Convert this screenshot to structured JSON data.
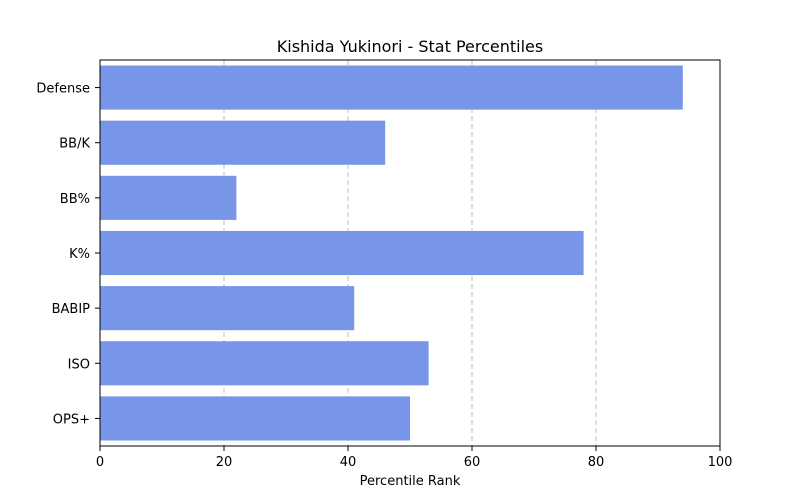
{
  "chart_data": {
    "type": "bar",
    "orientation": "horizontal",
    "title": "Kishida Yukinori - Stat Percentiles",
    "xlabel": "Percentile Rank",
    "ylabel": "",
    "xlim": [
      0,
      100
    ],
    "xticks": [
      0,
      20,
      40,
      60,
      80,
      100
    ],
    "grid": "x-dashed",
    "bar_color": "#7896e8",
    "categories": [
      "Defense",
      "BB/K",
      "BB%",
      "K%",
      "BABIP",
      "ISO",
      "OPS+"
    ],
    "values": [
      94,
      46,
      22,
      78,
      41,
      53,
      50
    ]
  }
}
